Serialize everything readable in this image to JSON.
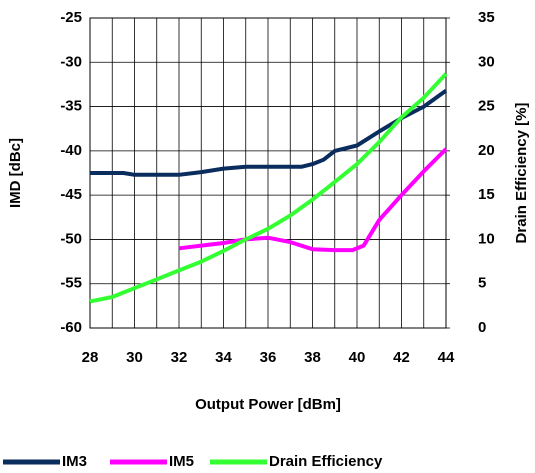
{
  "chart_data": {
    "type": "line",
    "xlabel": "Output Power [dBm]",
    "ylabel": "IMD [dBc]",
    "y2label": "Drain Efficiency [%]",
    "xlim": [
      28,
      44
    ],
    "xticks": [
      28,
      30,
      32,
      34,
      36,
      38,
      40,
      42,
      44
    ],
    "xminorticks": [
      29,
      31,
      33,
      35,
      37,
      39,
      41,
      43
    ],
    "ylim": [
      -60,
      -25
    ],
    "yticks": [
      -60,
      -55,
      -50,
      -45,
      -40,
      -35,
      -30,
      -25
    ],
    "y2lim": [
      0,
      35
    ],
    "y2ticks": [
      0,
      5,
      10,
      15,
      20,
      25,
      30,
      35
    ],
    "grid": true,
    "legend": "bottom",
    "series": [
      {
        "name": "IM3",
        "color": "#0a2d5e",
        "x": [
          28,
          29.5,
          30,
          32,
          33,
          34,
          35,
          36,
          37,
          37.5,
          38,
          38.5,
          39,
          40,
          41,
          42,
          43,
          44
        ],
        "values": [
          -42.5,
          -42.5,
          -42.7,
          -42.7,
          -42.4,
          -42,
          -41.8,
          -41.8,
          -41.8,
          -41.8,
          -41.5,
          -41,
          -40,
          -39.4,
          -37.8,
          -36.3,
          -35,
          -33.2
        ]
      },
      {
        "name": "IM5",
        "color": "#ff00ff",
        "x": [
          32,
          33,
          34,
          35,
          36,
          37,
          38,
          39,
          39.8,
          40.3,
          41,
          42,
          43,
          44
        ],
        "values": [
          -51,
          -50.7,
          -50.4,
          -50,
          -49.8,
          -50.3,
          -51.1,
          -51.2,
          -51.2,
          -50.7,
          -47.8,
          -45,
          -42.3,
          -39.8
        ]
      },
      {
        "name": "Drain Efficiency",
        "color": "#33ff33",
        "axis": "y2",
        "x": [
          28,
          29,
          30,
          31,
          32,
          33,
          34,
          35,
          36,
          37,
          38,
          39,
          40,
          41,
          42,
          43,
          44
        ],
        "values": [
          3,
          3.5,
          4.5,
          5.5,
          6.5,
          7.5,
          8.7,
          10,
          11.2,
          12.7,
          14.5,
          16.5,
          18.5,
          21,
          23.8,
          26,
          28.7
        ]
      }
    ]
  }
}
